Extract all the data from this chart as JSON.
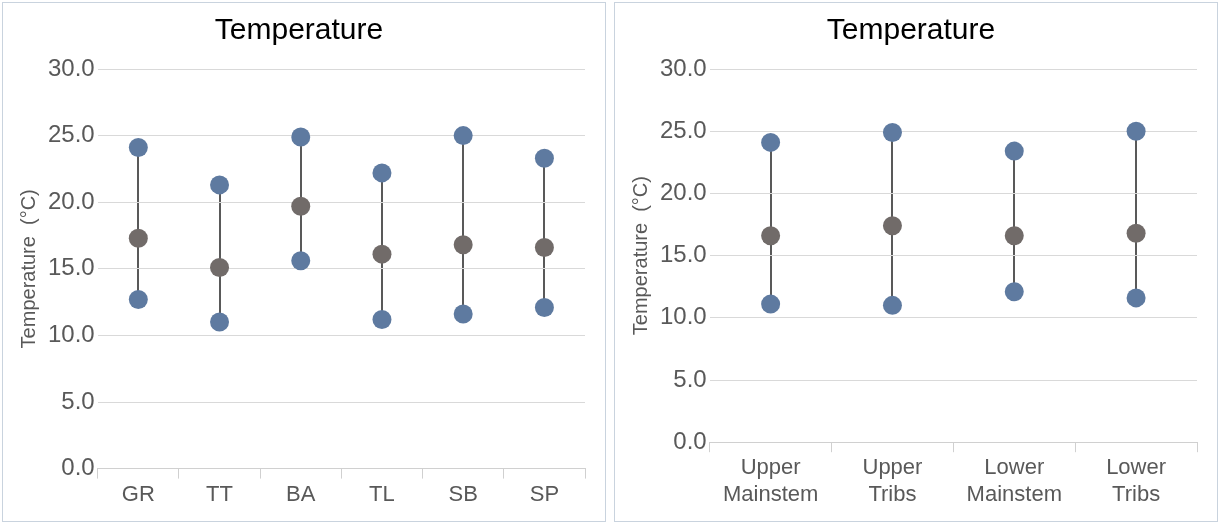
{
  "chart_data": [
    {
      "type": "scatter",
      "title": "Temperature",
      "ylabel": "Temperature  (°C)",
      "categories": [
        "GR",
        "TT",
        "BA",
        "TL",
        "SB",
        "SP"
      ],
      "series": [
        {
          "color": "#5e7aa0",
          "values": [
            24.1,
            21.3,
            24.9,
            22.2,
            25.0,
            23.3
          ]
        },
        {
          "color": "#5e7aa0",
          "values": [
            12.7,
            11.0,
            15.6,
            11.2,
            11.6,
            12.1
          ]
        },
        {
          "color": "#716b69",
          "values": [
            17.3,
            15.1,
            19.7,
            16.1,
            16.8,
            16.6
          ]
        }
      ],
      "ylim": [
        0,
        30
      ],
      "yticks": [
        {
          "value": 0,
          "label": "0.0"
        },
        {
          "value": 5,
          "label": "5.0"
        },
        {
          "value": 10,
          "label": "10.0"
        },
        {
          "value": 15,
          "label": "15.0"
        },
        {
          "value": 20,
          "label": "20.0"
        },
        {
          "value": 25,
          "label": "25.0"
        },
        {
          "value": 30,
          "label": "30.0"
        }
      ],
      "grid": "y",
      "legend": false,
      "marker": "circle"
    },
    {
      "type": "scatter",
      "title": "Temperature",
      "ylabel": "Temperature  (°C)",
      "categories": [
        "Upper Mainstem",
        "Upper Tribs",
        "Lower Mainstem",
        "Lower Tribs"
      ],
      "series": [
        {
          "color": "#5e7aa0",
          "values": [
            24.1,
            24.9,
            23.4,
            25.0
          ]
        },
        {
          "color": "#5e7aa0",
          "values": [
            11.1,
            11.0,
            12.1,
            11.6
          ]
        },
        {
          "color": "#716b69",
          "values": [
            16.6,
            17.4,
            16.6,
            16.8
          ]
        }
      ],
      "ylim": [
        0,
        30
      ],
      "yticks": [
        {
          "value": 0,
          "label": "0.0"
        },
        {
          "value": 5,
          "label": "5.0"
        },
        {
          "value": 10,
          "label": "10.0"
        },
        {
          "value": 15,
          "label": "15.0"
        },
        {
          "value": 20,
          "label": "20.0"
        },
        {
          "value": 25,
          "label": "25.0"
        },
        {
          "value": 30,
          "label": "30.0"
        }
      ],
      "grid": "y",
      "legend": false,
      "marker": "circle"
    }
  ]
}
